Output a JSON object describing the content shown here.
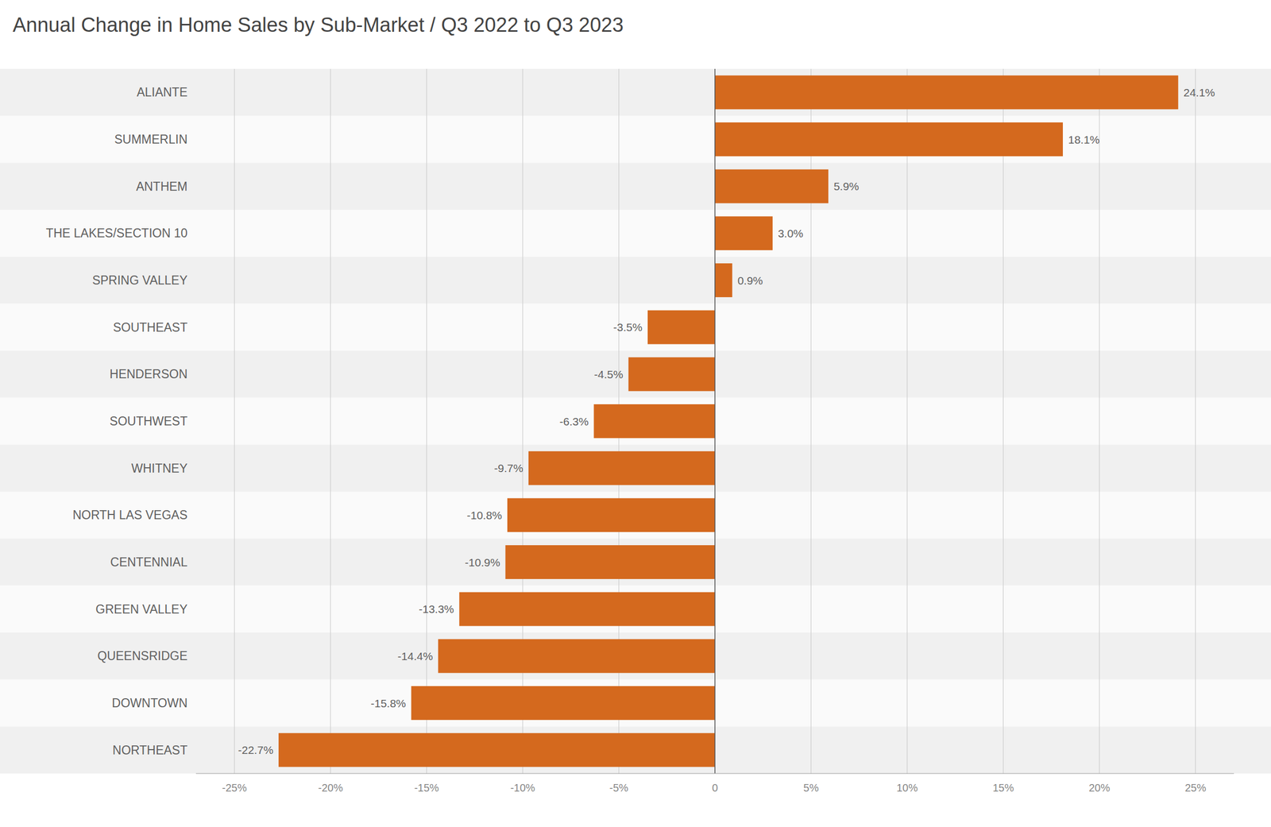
{
  "chart_data": {
    "type": "bar",
    "orientation": "horizontal",
    "title": "Annual Change in Home Sales by Sub-Market   /   Q3 2022 to Q3 2023",
    "categories": [
      "ALIANTE",
      "SUMMERLIN",
      "ANTHEM",
      "THE LAKES/SECTION 10",
      "SPRING VALLEY",
      "SOUTHEAST",
      "HENDERSON",
      "SOUTHWEST",
      "WHITNEY",
      "NORTH LAS VEGAS",
      "CENTENNIAL",
      "GREEN VALLEY",
      "QUEENSRIDGE",
      "DOWNTOWN",
      "NORTHEAST"
    ],
    "values": [
      24.1,
      18.1,
      5.9,
      3.0,
      0.9,
      -3.5,
      -4.5,
      -6.3,
      -9.7,
      -10.8,
      -10.9,
      -13.3,
      -14.4,
      -15.8,
      -22.7
    ],
    "value_labels": [
      "24.1%",
      "18.1%",
      "5.9%",
      "3.0%",
      "0.9%",
      "-3.5%",
      "-4.5%",
      "-6.3%",
      "-9.7%",
      "-10.8%",
      "-10.9%",
      "-13.3%",
      "-14.4%",
      "-15.8%",
      "-22.7%"
    ],
    "data_labels": true,
    "color": "#d4691e",
    "xlim": [
      -27,
      27
    ],
    "xticks": [
      {
        "value": -25,
        "label": "-25%"
      },
      {
        "value": -20,
        "label": "-20%"
      },
      {
        "value": -15,
        "label": "-15%"
      },
      {
        "value": -10,
        "label": "-10%"
      },
      {
        "value": -5,
        "label": "-5%"
      },
      0,
      {
        "value": 5,
        "label": "5%"
      },
      {
        "value": 10,
        "label": "10%"
      },
      {
        "value": 15,
        "label": "15%"
      },
      {
        "value": 20,
        "label": "20%"
      },
      {
        "value": 25,
        "label": "25%"
      }
    ],
    "grid": true
  }
}
